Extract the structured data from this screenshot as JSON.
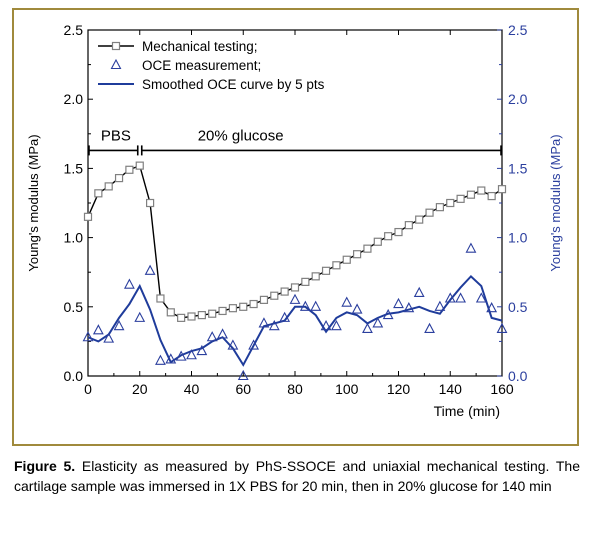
{
  "caption": {
    "label": "Figure 5.",
    "text": " Elasticity as measured by PhS-SSOCE and uniaxial mechanical testing. The cartilage sample was immersed in 1X PBS for 20 min, then in 20% glucose for 140 min"
  },
  "colors": {
    "frame": "#a08a3c",
    "mechanical": "#000000",
    "mechanical_marker": "#808080",
    "oce": "#2b3f9e",
    "smoothed": "#1f3c9b",
    "right_axis": "#2b3f9e"
  },
  "chart_data": {
    "type": "line",
    "xlabel": "Time (min)",
    "ylabel_left": "Young's modulus (MPa)",
    "ylabel_right": "Young's modulus (MPa)",
    "xlim": [
      0,
      160
    ],
    "ylim": [
      0,
      2.5
    ],
    "x_ticks": [
      "0",
      "20",
      "40",
      "60",
      "80",
      "100",
      "120",
      "140",
      "160"
    ],
    "y_ticks": [
      "0.0",
      "0.5",
      "1.0",
      "1.5",
      "2.0",
      "2.5"
    ],
    "legend_position": "top-left",
    "grid": false,
    "annotations": [
      {
        "text": "PBS",
        "x_range": [
          0,
          20
        ]
      },
      {
        "text": "20% glucose",
        "x_range": [
          20,
          160
        ]
      }
    ],
    "series": [
      {
        "name": "Mechanical testing;",
        "style": "line-square-marker",
        "x": [
          0,
          4,
          8,
          12,
          16,
          20,
          24,
          28,
          32,
          36,
          40,
          44,
          48,
          52,
          56,
          60,
          64,
          68,
          72,
          76,
          80,
          84,
          88,
          92,
          96,
          100,
          104,
          108,
          112,
          116,
          120,
          124,
          128,
          132,
          136,
          140,
          144,
          148,
          152,
          156,
          160
        ],
        "values": [
          1.15,
          1.32,
          1.37,
          1.43,
          1.49,
          1.52,
          1.25,
          0.56,
          0.46,
          0.42,
          0.43,
          0.44,
          0.45,
          0.47,
          0.49,
          0.5,
          0.52,
          0.55,
          0.58,
          0.61,
          0.64,
          0.68,
          0.72,
          0.76,
          0.8,
          0.84,
          0.88,
          0.92,
          0.97,
          1.01,
          1.04,
          1.09,
          1.13,
          1.18,
          1.22,
          1.25,
          1.28,
          1.31,
          1.34,
          1.3,
          1.35
        ]
      },
      {
        "name": "OCE measurement;",
        "style": "triangle-marker",
        "x": [
          0,
          4,
          8,
          12,
          16,
          20,
          24,
          28,
          32,
          36,
          40,
          44,
          48,
          52,
          56,
          60,
          64,
          68,
          72,
          76,
          80,
          84,
          88,
          92,
          96,
          100,
          104,
          108,
          112,
          116,
          120,
          124,
          128,
          132,
          136,
          140,
          144,
          148,
          152,
          156,
          160
        ],
        "values": [
          0.28,
          0.33,
          0.27,
          0.36,
          0.66,
          0.42,
          0.76,
          0.11,
          0.12,
          0.14,
          0.15,
          0.18,
          0.28,
          0.3,
          0.22,
          0.0,
          0.22,
          0.38,
          0.36,
          0.42,
          0.55,
          0.5,
          0.5,
          0.36,
          0.36,
          0.53,
          0.48,
          0.34,
          0.38,
          0.44,
          0.52,
          0.49,
          0.6,
          0.34,
          0.5,
          0.56,
          0.56,
          0.92,
          0.56,
          0.49,
          0.34
        ]
      },
      {
        "name": "Smoothed OCE curve by 5 pts",
        "style": "line",
        "x": [
          0,
          4,
          8,
          12,
          16,
          20,
          24,
          28,
          32,
          36,
          40,
          44,
          48,
          52,
          56,
          60,
          64,
          68,
          72,
          76,
          80,
          84,
          88,
          92,
          96,
          100,
          104,
          108,
          112,
          116,
          120,
          124,
          128,
          132,
          136,
          140,
          144,
          148,
          152,
          156,
          160
        ],
        "values": [
          0.28,
          0.25,
          0.3,
          0.42,
          0.52,
          0.65,
          0.48,
          0.26,
          0.1,
          0.15,
          0.18,
          0.2,
          0.25,
          0.28,
          0.2,
          0.08,
          0.22,
          0.36,
          0.38,
          0.4,
          0.5,
          0.5,
          0.44,
          0.32,
          0.42,
          0.46,
          0.44,
          0.38,
          0.42,
          0.45,
          0.46,
          0.48,
          0.5,
          0.47,
          0.45,
          0.55,
          0.64,
          0.72,
          0.65,
          0.42,
          0.4
        ]
      }
    ]
  }
}
